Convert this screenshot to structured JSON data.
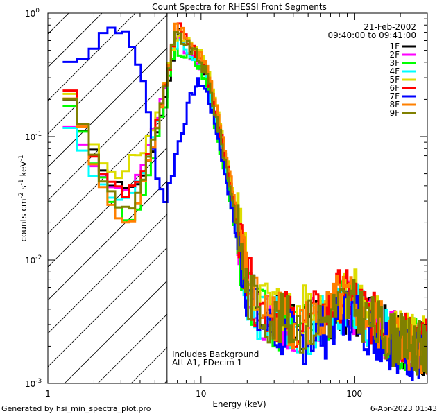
{
  "chart_data": {
    "type": "line",
    "title": "Count Spectra for RHESSI Front Segments",
    "xlabel": "Energy (keV)",
    "ylabel_base": "counts cm",
    "ylabel_exp1": "-2",
    "ylabel_mid": " s",
    "ylabel_exp2": "-1",
    "ylabel_end": " keV",
    "ylabel_exp3": "-1",
    "x_scale": "log",
    "y_scale": "log",
    "xlim": [
      1,
      300
    ],
    "ylim": [
      0.001,
      1.0
    ],
    "x_tick_labels": [
      {
        "value": 1,
        "label": "1"
      },
      {
        "value": 10,
        "label": "10"
      },
      {
        "value": 100,
        "label": "100"
      }
    ],
    "y_tick_labels": [
      {
        "value": 1.0,
        "base": "10",
        "exp": "0"
      },
      {
        "value": 0.1,
        "base": "10",
        "exp": "-1"
      },
      {
        "value": 0.01,
        "base": "10",
        "exp": "-2"
      },
      {
        "value": 0.001,
        "base": "10",
        "exp": "-3"
      }
    ],
    "date": "21-Feb-2002",
    "time_range": "09:40:00 to 09:41:00",
    "annotation_line1": "Includes Background",
    "annotation_line2": "Att A1, FDecim 1",
    "shaded_region_below_keV": 6.0,
    "series": [
      {
        "name": "1F",
        "color": "#000000",
        "seed": 1,
        "points": [
          [
            1.3,
            0.24
          ],
          [
            1.6,
            0.14
          ],
          [
            1.9,
            0.08
          ],
          [
            2.3,
            0.05
          ],
          [
            2.8,
            0.04
          ],
          [
            3.4,
            0.035
          ],
          [
            4.2,
            0.045
          ],
          [
            5.0,
            0.09
          ],
          [
            5.8,
            0.2
          ],
          [
            6.5,
            0.45
          ],
          [
            7.0,
            0.7
          ],
          [
            8.0,
            0.55
          ],
          [
            9.0,
            0.45
          ],
          [
            10.0,
            0.4
          ],
          [
            11.0,
            0.3
          ],
          [
            12.5,
            0.15
          ],
          [
            14.0,
            0.08
          ],
          [
            16.0,
            0.035
          ],
          [
            18.0,
            0.015
          ],
          [
            20.0,
            0.006
          ],
          [
            24.0,
            0.004
          ],
          [
            30.0,
            0.003
          ],
          [
            45.0,
            0.0025
          ],
          [
            65.0,
            0.003
          ],
          [
            80.0,
            0.004
          ],
          [
            100.0,
            0.004
          ],
          [
            130.0,
            0.003
          ],
          [
            180.0,
            0.0022
          ],
          [
            280.0,
            0.0018
          ]
        ]
      },
      {
        "name": "2F",
        "color": "#ff00ff",
        "seed": 2,
        "points": [
          [
            1.3,
            0.13
          ],
          [
            1.6,
            0.11
          ],
          [
            1.9,
            0.07
          ],
          [
            2.3,
            0.045
          ],
          [
            2.8,
            0.04
          ],
          [
            3.4,
            0.035
          ],
          [
            4.2,
            0.06
          ],
          [
            5.0,
            0.12
          ],
          [
            5.8,
            0.22
          ],
          [
            6.5,
            0.5
          ],
          [
            7.0,
            0.65
          ],
          [
            8.0,
            0.5
          ],
          [
            9.0,
            0.45
          ],
          [
            10.0,
            0.38
          ],
          [
            11.0,
            0.3
          ],
          [
            12.5,
            0.14
          ],
          [
            14.0,
            0.075
          ],
          [
            16.0,
            0.03
          ],
          [
            18.0,
            0.013
          ],
          [
            20.0,
            0.0055
          ],
          [
            24.0,
            0.0035
          ],
          [
            30.0,
            0.003
          ],
          [
            45.0,
            0.0026
          ],
          [
            65.0,
            0.003
          ],
          [
            80.0,
            0.004
          ],
          [
            100.0,
            0.004
          ],
          [
            130.0,
            0.003
          ],
          [
            180.0,
            0.0022
          ],
          [
            280.0,
            0.0018
          ]
        ]
      },
      {
        "name": "3F",
        "color": "#00ff00",
        "seed": 3,
        "points": [
          [
            1.3,
            0.24
          ],
          [
            1.6,
            0.12
          ],
          [
            1.9,
            0.07
          ],
          [
            2.3,
            0.045
          ],
          [
            2.8,
            0.025
          ],
          [
            3.4,
            0.02
          ],
          [
            4.2,
            0.03
          ],
          [
            5.0,
            0.08
          ],
          [
            5.8,
            0.18
          ],
          [
            6.5,
            0.4
          ],
          [
            7.0,
            0.5
          ],
          [
            8.0,
            0.45
          ],
          [
            9.0,
            0.4
          ],
          [
            10.0,
            0.35
          ],
          [
            11.0,
            0.25
          ],
          [
            12.5,
            0.12
          ],
          [
            14.0,
            0.06
          ],
          [
            16.0,
            0.025
          ],
          [
            18.0,
            0.01
          ],
          [
            20.0,
            0.005
          ],
          [
            24.0,
            0.0035
          ],
          [
            30.0,
            0.003
          ],
          [
            45.0,
            0.0025
          ],
          [
            65.0,
            0.003
          ],
          [
            80.0,
            0.0045
          ],
          [
            100.0,
            0.004
          ],
          [
            130.0,
            0.003
          ],
          [
            180.0,
            0.0022
          ],
          [
            280.0,
            0.0018
          ]
        ]
      },
      {
        "name": "4F",
        "color": "#00ffff",
        "seed": 4,
        "points": [
          [
            1.3,
            0.16
          ],
          [
            1.6,
            0.09
          ],
          [
            1.9,
            0.05
          ],
          [
            2.3,
            0.04
          ],
          [
            2.8,
            0.03
          ],
          [
            3.4,
            0.035
          ],
          [
            4.2,
            0.05
          ],
          [
            5.0,
            0.1
          ],
          [
            5.8,
            0.25
          ],
          [
            6.5,
            0.5
          ],
          [
            7.0,
            0.6
          ],
          [
            8.0,
            0.5
          ],
          [
            9.0,
            0.45
          ],
          [
            10.0,
            0.4
          ],
          [
            11.0,
            0.3
          ],
          [
            12.5,
            0.14
          ],
          [
            14.0,
            0.07
          ],
          [
            16.0,
            0.03
          ],
          [
            18.0,
            0.012
          ],
          [
            20.0,
            0.005
          ],
          [
            24.0,
            0.0035
          ],
          [
            30.0,
            0.003
          ],
          [
            45.0,
            0.0025
          ],
          [
            65.0,
            0.003
          ],
          [
            80.0,
            0.004
          ],
          [
            100.0,
            0.004
          ],
          [
            130.0,
            0.003
          ],
          [
            180.0,
            0.0022
          ],
          [
            280.0,
            0.0018
          ]
        ]
      },
      {
        "name": "5F",
        "color": "#dddd00",
        "seed": 5,
        "points": [
          [
            1.3,
            0.24
          ],
          [
            1.6,
            0.15
          ],
          [
            1.9,
            0.09
          ],
          [
            2.3,
            0.06
          ],
          [
            2.8,
            0.05
          ],
          [
            3.4,
            0.06
          ],
          [
            4.2,
            0.08
          ],
          [
            5.0,
            0.12
          ],
          [
            5.8,
            0.25
          ],
          [
            6.5,
            0.5
          ],
          [
            7.0,
            0.7
          ],
          [
            8.0,
            0.6
          ],
          [
            9.0,
            0.5
          ],
          [
            10.0,
            0.45
          ],
          [
            11.0,
            0.35
          ],
          [
            12.5,
            0.18
          ],
          [
            14.0,
            0.09
          ],
          [
            16.0,
            0.04
          ],
          [
            18.0,
            0.018
          ],
          [
            20.0,
            0.008
          ],
          [
            24.0,
            0.005
          ],
          [
            30.0,
            0.004
          ],
          [
            45.0,
            0.0035
          ],
          [
            65.0,
            0.004
          ],
          [
            80.0,
            0.005
          ],
          [
            100.0,
            0.005
          ],
          [
            130.0,
            0.0035
          ],
          [
            180.0,
            0.0025
          ],
          [
            280.0,
            0.002
          ]
        ]
      },
      {
        "name": "6F",
        "color": "#ff0000",
        "seed": 6,
        "points": [
          [
            1.3,
            0.28
          ],
          [
            1.6,
            0.15
          ],
          [
            1.9,
            0.09
          ],
          [
            2.3,
            0.05
          ],
          [
            2.8,
            0.04
          ],
          [
            3.4,
            0.035
          ],
          [
            4.2,
            0.05
          ],
          [
            5.0,
            0.1
          ],
          [
            5.8,
            0.22
          ],
          [
            6.5,
            0.55
          ],
          [
            7.0,
            0.8
          ],
          [
            8.0,
            0.6
          ],
          [
            9.0,
            0.5
          ],
          [
            10.0,
            0.42
          ],
          [
            11.0,
            0.32
          ],
          [
            12.5,
            0.16
          ],
          [
            14.0,
            0.08
          ],
          [
            16.0,
            0.035
          ],
          [
            18.0,
            0.015
          ],
          [
            20.0,
            0.0065
          ],
          [
            24.0,
            0.004
          ],
          [
            30.0,
            0.0035
          ],
          [
            45.0,
            0.003
          ],
          [
            65.0,
            0.0035
          ],
          [
            80.0,
            0.005
          ],
          [
            100.0,
            0.0045
          ],
          [
            130.0,
            0.0032
          ],
          [
            180.0,
            0.0024
          ],
          [
            280.0,
            0.0019
          ]
        ]
      },
      {
        "name": "7F",
        "color": "#0000ff",
        "seed": 7,
        "points": [
          [
            1.3,
            0.37
          ],
          [
            1.6,
            0.45
          ],
          [
            1.9,
            0.5
          ],
          [
            2.3,
            0.7
          ],
          [
            2.8,
            0.8
          ],
          [
            3.4,
            0.6
          ],
          [
            4.2,
            0.3
          ],
          [
            5.0,
            0.06
          ],
          [
            5.8,
            0.03
          ],
          [
            6.5,
            0.05
          ],
          [
            7.0,
            0.08
          ],
          [
            8.0,
            0.15
          ],
          [
            9.0,
            0.25
          ],
          [
            10.0,
            0.28
          ],
          [
            11.0,
            0.22
          ],
          [
            12.5,
            0.12
          ],
          [
            14.0,
            0.06
          ],
          [
            16.0,
            0.025
          ],
          [
            18.0,
            0.01
          ],
          [
            20.0,
            0.005
          ],
          [
            24.0,
            0.003
          ],
          [
            30.0,
            0.0025
          ],
          [
            45.0,
            0.0022
          ],
          [
            65.0,
            0.0025
          ],
          [
            80.0,
            0.0035
          ],
          [
            100.0,
            0.0035
          ],
          [
            130.0,
            0.0025
          ],
          [
            180.0,
            0.002
          ],
          [
            280.0,
            0.0015
          ]
        ]
      },
      {
        "name": "8F",
        "color": "#ff8000",
        "seed": 8,
        "points": [
          [
            1.3,
            0.26
          ],
          [
            1.6,
            0.14
          ],
          [
            1.9,
            0.07
          ],
          [
            2.3,
            0.04
          ],
          [
            2.8,
            0.022
          ],
          [
            3.4,
            0.018
          ],
          [
            4.2,
            0.04
          ],
          [
            5.0,
            0.1
          ],
          [
            5.8,
            0.25
          ],
          [
            6.5,
            0.6
          ],
          [
            7.0,
            0.85
          ],
          [
            8.0,
            0.65
          ],
          [
            9.0,
            0.5
          ],
          [
            10.0,
            0.45
          ],
          [
            11.0,
            0.35
          ],
          [
            12.5,
            0.17
          ],
          [
            14.0,
            0.09
          ],
          [
            16.0,
            0.04
          ],
          [
            18.0,
            0.016
          ],
          [
            20.0,
            0.0065
          ],
          [
            24.0,
            0.004
          ],
          [
            30.0,
            0.0035
          ],
          [
            45.0,
            0.0028
          ],
          [
            65.0,
            0.0032
          ],
          [
            80.0,
            0.0045
          ],
          [
            100.0,
            0.0042
          ],
          [
            130.0,
            0.003
          ],
          [
            180.0,
            0.0023
          ],
          [
            280.0,
            0.0018
          ]
        ]
      },
      {
        "name": "9F",
        "color": "#808000",
        "seed": 9,
        "points": [
          [
            1.3,
            0.26
          ],
          [
            1.6,
            0.15
          ],
          [
            1.9,
            0.08
          ],
          [
            2.3,
            0.045
          ],
          [
            2.8,
            0.03
          ],
          [
            3.4,
            0.025
          ],
          [
            4.2,
            0.045
          ],
          [
            5.0,
            0.1
          ],
          [
            5.8,
            0.22
          ],
          [
            6.5,
            0.5
          ],
          [
            7.0,
            0.7
          ],
          [
            8.0,
            0.55
          ],
          [
            9.0,
            0.48
          ],
          [
            10.0,
            0.4
          ],
          [
            11.0,
            0.3
          ],
          [
            12.5,
            0.15
          ],
          [
            14.0,
            0.075
          ],
          [
            16.0,
            0.032
          ],
          [
            18.0,
            0.013
          ],
          [
            20.0,
            0.0055
          ],
          [
            24.0,
            0.0038
          ],
          [
            30.0,
            0.0032
          ],
          [
            45.0,
            0.0028
          ],
          [
            65.0,
            0.0032
          ],
          [
            80.0,
            0.0042
          ],
          [
            100.0,
            0.004
          ],
          [
            130.0,
            0.003
          ],
          [
            180.0,
            0.0022
          ],
          [
            280.0,
            0.0018
          ]
        ]
      }
    ]
  },
  "footer": {
    "left": "Generated by hsi_min_spectra_plot.pro",
    "right": "6-Apr-2023 01:43"
  }
}
